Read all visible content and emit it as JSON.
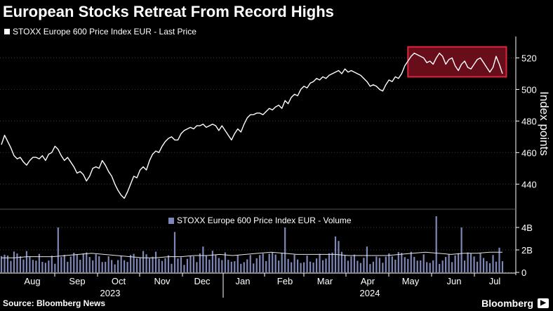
{
  "header": {
    "title": "European Stocks Retreat From Record Highs",
    "legend_price": "STOXX Europe 600 Price Index EUR - Last Price",
    "legend_volume": "STOXX Europe 600 Price Index EUR - Volume"
  },
  "footer": {
    "source": "Source: Bloomberg News",
    "brand": "Bloomberg",
    "brand_icon": "play-icon"
  },
  "colors": {
    "background": "#000000",
    "line": "#ffffff",
    "highlight_stroke": "#e0253a",
    "highlight_fill": "#7a1120",
    "volume_bar": "#7d87b8",
    "grid": "#3a3a3a"
  },
  "chart_data": [
    {
      "type": "line",
      "series": [
        {
          "name": "STOXX Europe 600 Price Index EUR - Last Price",
          "values": [
            465,
            471,
            467,
            463,
            458,
            456,
            457,
            454,
            452,
            455,
            457,
            457,
            456,
            458,
            455,
            459,
            460,
            464,
            462,
            458,
            455,
            457,
            454,
            451,
            447,
            448,
            446,
            442,
            445,
            450,
            451,
            450,
            455,
            452,
            448,
            445,
            440,
            436,
            433,
            431,
            435,
            440,
            445,
            444,
            449,
            451,
            449,
            455,
            459,
            461,
            460,
            464,
            467,
            469,
            470,
            468,
            468,
            472,
            474,
            475,
            476,
            475,
            477,
            477,
            478,
            476,
            477,
            478,
            477,
            474,
            477,
            474,
            471,
            468,
            472,
            475,
            473,
            478,
            482,
            484,
            484,
            485,
            485,
            484,
            486,
            488,
            487,
            489,
            490,
            488,
            493,
            491,
            495,
            497,
            496,
            500,
            502,
            501,
            504,
            505,
            507,
            506,
            508,
            507,
            509,
            510,
            511,
            512,
            510,
            513,
            511,
            512,
            511,
            510,
            509,
            507,
            505,
            502,
            503,
            502,
            500,
            499,
            503,
            506,
            505,
            508,
            507,
            510,
            515,
            518,
            521,
            523,
            522,
            521,
            520,
            517,
            518,
            516,
            520,
            523,
            521,
            516,
            519,
            520,
            515,
            512,
            516,
            518,
            514,
            513,
            516,
            519,
            520,
            517,
            514,
            511,
            514,
            521,
            516,
            510
          ]
        }
      ],
      "ylim": [
        425,
        530
      ],
      "yticks": [
        440,
        460,
        480,
        500,
        520
      ],
      "ylabel": "Index points",
      "highlight": {
        "x_start": 129,
        "x_end": 158,
        "y_start": 508,
        "y_end": 527
      }
    },
    {
      "type": "bar",
      "series": [
        {
          "name": "STOXX Europe 600 Price Index EUR - Volume"
        }
      ],
      "ylim": [
        0,
        5
      ],
      "yticks": [
        0,
        2,
        4
      ],
      "ytick_labels": [
        "0",
        "2B",
        "4B"
      ],
      "unit": "B",
      "spike_values": [
        {
          "index": 18,
          "value": 4.0
        },
        {
          "index": 55,
          "value": 3.6
        },
        {
          "index": 64,
          "value": 2.3
        },
        {
          "index": 90,
          "value": 4.1
        },
        {
          "index": 106,
          "value": 3.2
        },
        {
          "index": 107,
          "value": 2.8
        },
        {
          "index": 116,
          "value": 2.3
        },
        {
          "index": 138,
          "value": 5.0
        },
        {
          "index": 146,
          "value": 4.0
        },
        {
          "index": 158,
          "value": 2.2
        }
      ],
      "base_level": 1.3,
      "moving_average": [
        1.3,
        1.3,
        1.4,
        1.4,
        1.4,
        1.5,
        1.6,
        1.7,
        1.6,
        1.5,
        1.4,
        1.3,
        1.3,
        1.4,
        1.4,
        1.5,
        1.5,
        1.6,
        1.5,
        1.6,
        1.7,
        1.8,
        1.7,
        1.6,
        1.6,
        1.6,
        1.6,
        1.5,
        1.5,
        1.5,
        1.5,
        1.6,
        1.7,
        1.8,
        1.7,
        1.6,
        1.7,
        1.7,
        1.8,
        1.8
      ]
    }
  ],
  "x_axis": {
    "months": [
      "Aug",
      "Sep",
      "Oct",
      "Nov",
      "Dec",
      "Jan",
      "Feb",
      "Mar",
      "Apr",
      "May",
      "Jun",
      "Jul"
    ],
    "years": [
      "2023",
      "2024"
    ]
  }
}
